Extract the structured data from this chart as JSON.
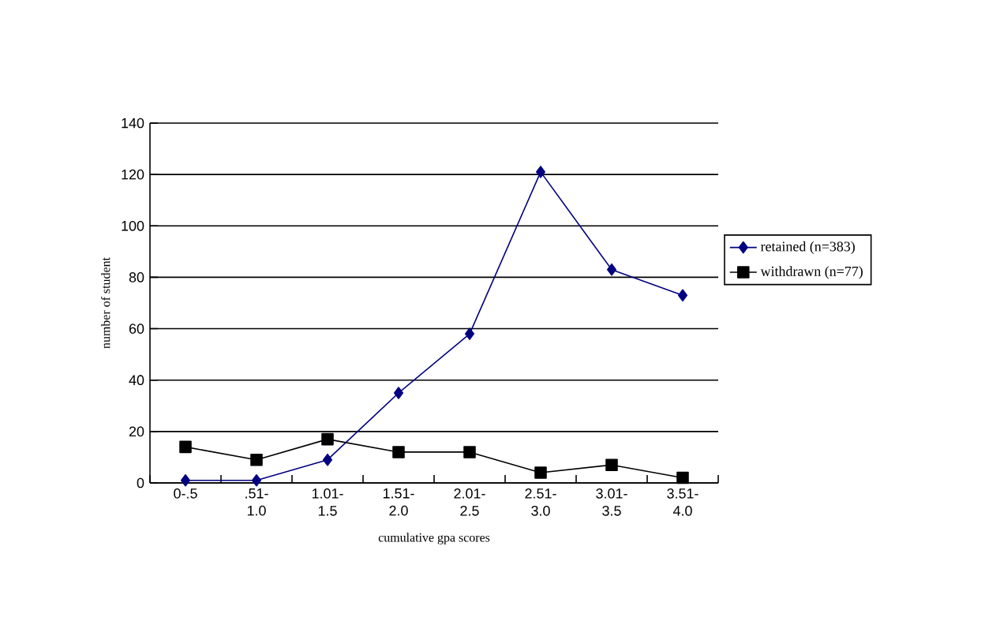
{
  "chart_data": {
    "type": "line",
    "xlabel": "cumulative gpa scores",
    "ylabel": "number of student",
    "categories": [
      "0-.5",
      ".51-1.0",
      "1.01-1.5",
      "1.51-2.0",
      "2.01-2.5",
      "2.51-3.0",
      "3.01-3.5",
      "3.51-4.0"
    ],
    "series": [
      {
        "name": "retained (n=383)",
        "color": "#000080",
        "marker": "diamond",
        "values": [
          1,
          1,
          9,
          35,
          58,
          121,
          83,
          73
        ]
      },
      {
        "name": "withdrawn (n=77)",
        "color": "#000000",
        "marker": "square",
        "values": [
          14,
          9,
          17,
          12,
          12,
          4,
          7,
          2
        ]
      }
    ],
    "ylim": [
      0,
      140
    ],
    "yticks": [
      0,
      20,
      40,
      60,
      80,
      100,
      120,
      140
    ],
    "grid": "y",
    "legend": "right"
  }
}
